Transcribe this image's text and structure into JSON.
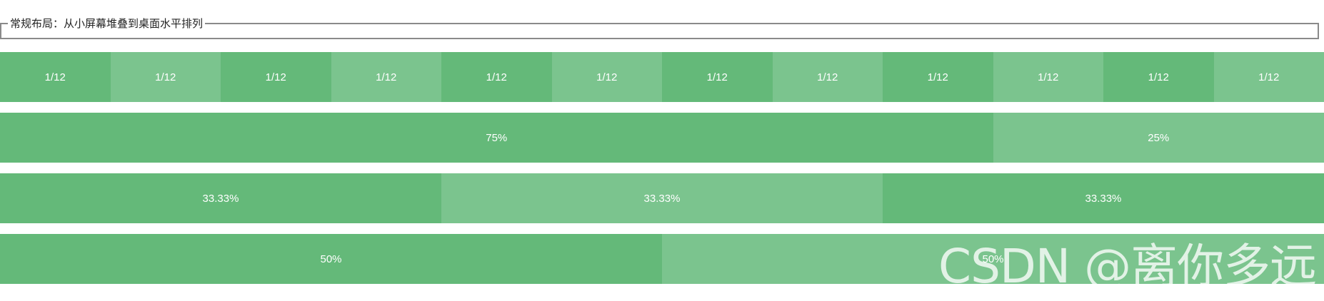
{
  "fieldset": {
    "legend": "常规布局：从小屏幕堆叠到桌面水平排列"
  },
  "rows": {
    "twelfths": [
      "1/12",
      "1/12",
      "1/12",
      "1/12",
      "1/12",
      "1/12",
      "1/12",
      "1/12",
      "1/12",
      "1/12",
      "1/12",
      "1/12"
    ],
    "quarters": [
      "75%",
      "25%"
    ],
    "thirds": [
      "33.33%",
      "33.33%",
      "33.33%"
    ],
    "halves": [
      "50%",
      "50%"
    ]
  },
  "watermark": "CSDN @离你多远",
  "colors": {
    "dark_green": "#64b979",
    "light_green": "#7bc48e",
    "text": "#ffffff"
  }
}
